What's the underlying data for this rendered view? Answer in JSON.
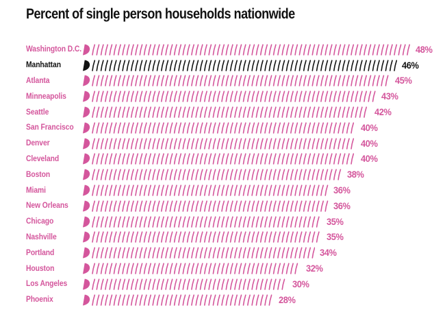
{
  "title": "Percent of single person households nationwide",
  "chart_data": {
    "type": "bar",
    "orientation": "horizontal",
    "title": "Percent of single person households nationwide",
    "unit": "%",
    "categories": [
      "Washington D.C.",
      "Manhattan",
      "Atlanta",
      "Minneapolis",
      "Seattle",
      "San Francisco",
      "Denver",
      "Cleveland",
      "Boston",
      "Miami",
      "New Orleans",
      "Chicago",
      "Nashville",
      "Portland",
      "Houston",
      "Los Angeles",
      "Phoenix"
    ],
    "values": [
      48,
      46,
      45,
      43,
      42,
      40,
      40,
      40,
      38,
      36,
      36,
      35,
      35,
      34,
      32,
      30,
      28
    ],
    "value_labels": [
      "48%",
      "46%",
      "45%",
      "43%",
      "42%",
      "40%",
      "40%",
      "40%",
      "38%",
      "36%",
      "36%",
      "35%",
      "35%",
      "34%",
      "32%",
      "30%",
      "28%"
    ],
    "highlight_category": "Manhattan",
    "xlim": [
      0,
      50
    ],
    "grid": false,
    "legend": "none",
    "bar_style": "filled wedge cap followed by repeated thin curved tick strokes",
    "colors": {
      "primary": "#d4569c",
      "highlight": "#121212",
      "background": "#ffffff",
      "title_text": "#121212"
    }
  }
}
